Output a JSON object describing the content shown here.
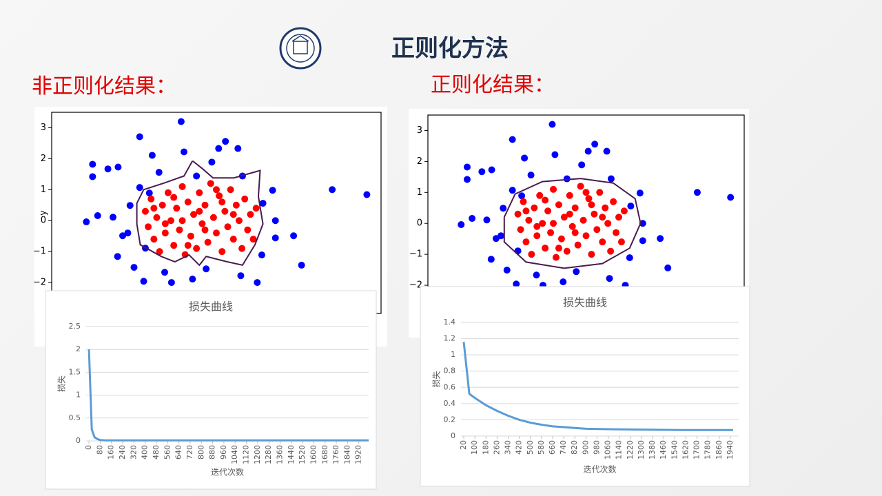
{
  "title": "正则化方法",
  "left_label": "非正则化结果：",
  "right_label": "正则化结果：",
  "chart_data": [
    {
      "type": "scatter",
      "y_label": "y",
      "xlim": [
        -2.6,
        3.2
      ],
      "ylim": [
        -3,
        3.5
      ],
      "yticks": [
        {
          "value": -2,
          "label": "−2"
        },
        {
          "value": -1,
          "label": "−1"
        },
        0,
        1,
        2,
        3
      ],
      "series": [
        {
          "color": "#0000ff",
          "x": [
            -1.99,
            -1.88,
            -1.88,
            -1.79,
            -1.61,
            -1.52,
            -1.43,
            -1.35,
            -1.44,
            -1.22,
            -1.26,
            -1.05,
            -1.05,
            -0.88,
            -0.83,
            -0.71,
            -0.32,
            -0.27,
            -0.05,
            0.22,
            0.34,
            0.46,
            0.68,
            0.76,
            1.12,
            1.29,
            1.34,
            1.34,
            1.1,
            1.02,
            0.73,
            0.12,
            -0.12,
            -0.49,
            -0.61,
            -0.95,
            -1.15,
            -0.98,
            1.66,
            1.8,
            2.34,
            2.95
          ],
          "values": [
            -0.04,
            1.82,
            1.42,
            0.16,
            1.67,
            0.11,
            1.73,
            -0.49,
            -1.16,
            0.49,
            -0.4,
            2.71,
            1.07,
            0.89,
            2.11,
            1.56,
            3.2,
            2.22,
            1.44,
            1.89,
            2.33,
            2.56,
            2.33,
            1.44,
            0.56,
            0.98,
            0.0,
            -0.56,
            -1.11,
            -2.0,
            -1.78,
            -1.56,
            -1.89,
            -2.0,
            -1.67,
            -0.89,
            -1.51,
            -1.96,
            -0.49,
            -1.44,
            1.0,
            0.84
          ]
        },
        {
          "color": "#ff0000",
          "x": [
            -0.95,
            -0.9,
            -0.85,
            -0.8,
            -0.75,
            -0.7,
            -0.65,
            -0.6,
            -0.55,
            -0.5,
            -0.45,
            -0.4,
            -0.35,
            -0.3,
            -0.25,
            -0.2,
            -0.15,
            -0.1,
            -0.05,
            0.0,
            0.05,
            0.1,
            0.15,
            0.2,
            0.25,
            0.3,
            0.35,
            0.4,
            0.45,
            0.5,
            0.55,
            0.6,
            0.65,
            0.7,
            0.75,
            0.8,
            0.85,
            0.9,
            0.95,
            1.0,
            -0.6,
            -0.3,
            0.1,
            0.4,
            0.0,
            -0.8,
            0.6,
            -0.2,
            0.3,
            -0.45
          ],
          "values": [
            0.3,
            -0.2,
            0.7,
            -0.6,
            0.1,
            -1.0,
            0.5,
            -0.4,
            0.9,
            0.0,
            -0.8,
            0.4,
            -0.3,
            1.1,
            -1.1,
            0.6,
            -0.5,
            0.2,
            -0.9,
            0.9,
            -0.1,
            0.5,
            -0.7,
            1.2,
            0.1,
            -0.4,
            0.8,
            -1.0,
            0.3,
            -0.2,
            1.0,
            -0.6,
            0.5,
            0.0,
            -0.9,
            0.7,
            -0.3,
            0.2,
            -0.6,
            0.4,
            -0.1,
            0.0,
            -0.3,
            0.6,
            0.3,
            0.4,
            0.2,
            -0.8,
            1.0,
            0.75
          ]
        }
      ],
      "boundary": {
        "color": "#4b1a4f",
        "x": [
          -0.12,
          0.06,
          0.24,
          0.61,
          1.07,
          1.04,
          1.12,
          0.98,
          0.76,
          0.49,
          0.12,
          0.0,
          -0.18,
          -0.43,
          -0.67,
          -1.04,
          -1.1,
          -1.1,
          -0.98,
          -0.61,
          -0.27,
          -0.12
        ],
        "values": [
          1.93,
          1.67,
          1.38,
          1.38,
          1.62,
          0.78,
          -0.11,
          -0.78,
          -1.44,
          -1.33,
          -1.16,
          -1.44,
          -1.11,
          -1.33,
          -1.16,
          -0.78,
          -0.11,
          0.56,
          1.0,
          1.22,
          1.44,
          1.93
        ]
      }
    },
    {
      "type": "line",
      "title": "损失曲线",
      "x_label": "迭代次数",
      "y_label": "损失",
      "xlim": [
        -20,
        1990
      ],
      "ylim": [
        0,
        2.5
      ],
      "xticks": [
        0,
        80,
        160,
        240,
        320,
        400,
        480,
        560,
        640,
        720,
        800,
        880,
        960,
        1040,
        1120,
        1200,
        1280,
        1360,
        1440,
        1520,
        1600,
        1680,
        1760,
        1840,
        1920
      ],
      "yticks": [
        0,
        0.5,
        1,
        1.5,
        2,
        2.5
      ],
      "grid": true,
      "series": [
        {
          "color": "#5b9bd5",
          "x": [
            0,
            20,
            40,
            60,
            80,
            120,
            160,
            240,
            400,
            800,
            1200,
            1600,
            1990
          ],
          "values": [
            2.0,
            0.25,
            0.08,
            0.04,
            0.02,
            0.01,
            0.01,
            0.01,
            0.01,
            0.01,
            0.01,
            0.01,
            0.01
          ]
        }
      ]
    },
    {
      "type": "scatter",
      "xlim": [
        -2.6,
        3.2
      ],
      "ylim": [
        -3,
        3.5
      ],
      "yticks": [
        {
          "value": -2,
          "label": "−2"
        },
        {
          "value": -1,
          "label": "−1"
        },
        0,
        1,
        2,
        3
      ],
      "series": [
        {
          "color": "#0000ff",
          "x": [
            -1.99,
            -1.88,
            -1.88,
            -1.79,
            -1.61,
            -1.52,
            -1.43,
            -1.35,
            -1.44,
            -1.22,
            -1.26,
            -1.05,
            -1.05,
            -0.88,
            -0.83,
            -0.71,
            -0.32,
            -0.27,
            -0.05,
            0.22,
            0.34,
            0.46,
            0.68,
            0.76,
            1.12,
            1.29,
            1.34,
            1.34,
            1.1,
            1.02,
            0.73,
            0.12,
            -0.12,
            -0.49,
            -0.61,
            -0.95,
            -1.15,
            -0.98,
            1.66,
            1.8,
            2.34,
            2.95
          ],
          "values": [
            -0.04,
            1.82,
            1.42,
            0.16,
            1.67,
            0.11,
            1.73,
            -0.49,
            -1.16,
            0.49,
            -0.4,
            2.71,
            1.07,
            0.89,
            2.11,
            1.56,
            3.2,
            2.22,
            1.44,
            1.89,
            2.33,
            2.56,
            2.33,
            1.44,
            0.56,
            0.98,
            0.0,
            -0.56,
            -1.11,
            -2.0,
            -1.78,
            -1.56,
            -1.89,
            -2.0,
            -1.67,
            -0.89,
            -1.51,
            -1.96,
            -0.49,
            -1.44,
            1.0,
            0.84
          ]
        },
        {
          "color": "#ff0000",
          "x": [
            -0.95,
            -0.9,
            -0.85,
            -0.8,
            -0.75,
            -0.7,
            -0.65,
            -0.6,
            -0.55,
            -0.5,
            -0.45,
            -0.4,
            -0.35,
            -0.3,
            -0.25,
            -0.2,
            -0.15,
            -0.1,
            -0.05,
            0.0,
            0.05,
            0.1,
            0.15,
            0.2,
            0.25,
            0.3,
            0.35,
            0.4,
            0.45,
            0.5,
            0.55,
            0.6,
            0.65,
            0.7,
            0.75,
            0.8,
            0.85,
            0.9,
            0.95,
            1.0,
            -0.6,
            -0.3,
            0.1,
            0.4,
            0.0,
            -0.8,
            0.6,
            -0.2,
            0.3,
            -0.45
          ],
          "values": [
            0.3,
            -0.2,
            0.7,
            -0.6,
            0.1,
            -1.0,
            0.5,
            -0.4,
            0.9,
            0.0,
            -0.8,
            0.4,
            -0.3,
            1.1,
            -1.1,
            0.6,
            -0.5,
            0.2,
            -0.9,
            0.9,
            -0.1,
            0.5,
            -0.7,
            1.2,
            0.1,
            -0.4,
            0.8,
            -1.0,
            0.3,
            -0.2,
            1.0,
            -0.6,
            0.5,
            0.0,
            -0.9,
            0.7,
            -0.3,
            0.2,
            -0.6,
            0.4,
            -0.1,
            0.0,
            -0.3,
            0.6,
            0.3,
            0.4,
            0.2,
            -0.8,
            1.0,
            0.75
          ]
        }
      ],
      "boundary": {
        "color": "#4b1a4f",
        "x": [
          -1.2,
          -1.0,
          -0.5,
          0.2,
          0.8,
          1.2,
          1.3,
          1.1,
          0.6,
          -0.1,
          -0.8,
          -1.2,
          -1.2
        ],
        "values": [
          0.2,
          0.95,
          1.35,
          1.45,
          1.3,
          0.8,
          0.0,
          -0.8,
          -1.3,
          -1.45,
          -1.25,
          -0.6,
          0.2
        ]
      }
    },
    {
      "type": "line",
      "title": "损失曲线",
      "x_label": "迭代次数",
      "y_label": "损失",
      "xlim": [
        0,
        2000
      ],
      "ylim": [
        0,
        1.4
      ],
      "xticks": [
        20,
        100,
        180,
        260,
        340,
        420,
        500,
        580,
        660,
        740,
        820,
        900,
        980,
        1060,
        1140,
        1220,
        1300,
        1380,
        1460,
        1540,
        1620,
        1700,
        1780,
        1860,
        1940
      ],
      "yticks": [
        0,
        0.2,
        0.4,
        0.6,
        0.8,
        1,
        1.2,
        1.4
      ],
      "grid": true,
      "series": [
        {
          "color": "#5b9bd5",
          "x": [
            20,
            60,
            100,
            180,
            260,
            340,
            420,
            500,
            580,
            660,
            740,
            820,
            900,
            1060,
            1300,
            1600,
            1960
          ],
          "values": [
            1.16,
            0.52,
            0.47,
            0.38,
            0.31,
            0.25,
            0.2,
            0.165,
            0.14,
            0.12,
            0.11,
            0.1,
            0.09,
            0.085,
            0.08,
            0.075,
            0.075
          ]
        }
      ]
    }
  ]
}
